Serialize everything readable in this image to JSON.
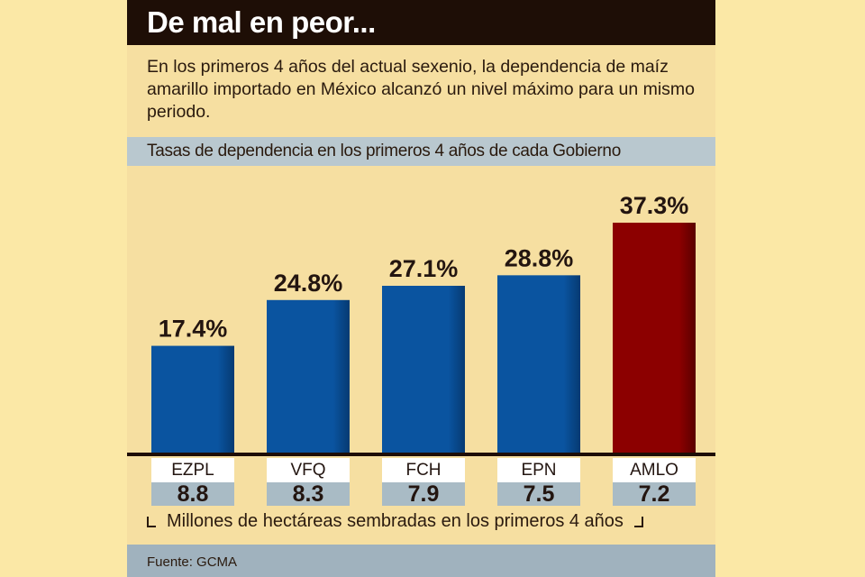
{
  "header": {
    "title": "De mal en peor..."
  },
  "intro": "En los primeros 4 años del actual sexenio, la dependencia de maíz amarillo importado en México alcanzó un nivel máximo para un mismo periodo.",
  "subtitle": "Tasas de dependencia en los primeros 4 años de cada Gobierno",
  "colors": {
    "normal": "#0a54a0",
    "highlight": "#8c0000",
    "baseline": "#1e0e06"
  },
  "chart_data": {
    "type": "bar",
    "title": "Tasas de dependencia en los primeros 4 años de cada Gobierno",
    "categories": [
      "EZPL",
      "VFQ",
      "FCH",
      "EPN",
      "AMLO"
    ],
    "values": [
      17.4,
      24.8,
      27.1,
      28.8,
      37.3
    ],
    "value_labels": [
      "17.4%",
      "24.8%",
      "27.1%",
      "28.8%",
      "37.3%"
    ],
    "highlight_index": 4,
    "secondary_values": [
      "8.8",
      "8.3",
      "7.9",
      "7.5",
      "7.2"
    ],
    "secondary_label": "Millones de hectáreas sembradas en los primeros 4 años",
    "xlabel": "",
    "ylabel": "",
    "ylim": [
      0,
      43
    ],
    "grid": false,
    "legend": "none"
  },
  "source": "Fuente: GCMA"
}
